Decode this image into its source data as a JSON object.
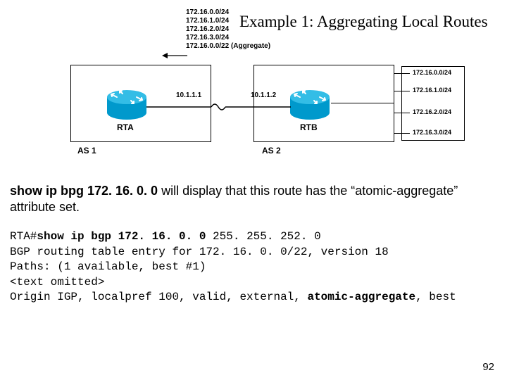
{
  "title": "Example 1: Aggregating Local Routes",
  "page_number": "92",
  "diagram": {
    "top_routes": [
      "172.16.0.0/24",
      "172.16.1.0/24",
      "172.16.2.0/24",
      "172.16.3.0/24"
    ],
    "aggregate": "172.16.0.0/22 (Aggregate)",
    "as1_label": "AS 1",
    "as2_label": "AS 2",
    "rta_label": "RTA",
    "rtb_label": "RTB",
    "link_ip_a": "10.1.1.1",
    "link_ip_b": "10.1.1.2",
    "right_routes": [
      "172.16.0.0/24",
      "172.16.1.0/24",
      "172.16.2.0/24",
      "172.16.3.0/24"
    ],
    "colors": {
      "router_body": "#0099cc",
      "router_top": "#33bde6",
      "router_arrow": "#ffffff",
      "box_border": "#000000",
      "link": "#000000",
      "bg": "#ffffff"
    },
    "right_stub_tops": [
      92,
      117,
      148,
      177
    ],
    "right_label_tops": [
      86,
      111,
      142,
      171
    ]
  },
  "description": {
    "cmd": "show ip bpg 172. 16. 0. 0",
    "rest": " will display that this route has the “atomic-aggregate” attribute set."
  },
  "cli": {
    "prompt": "RTA#",
    "cmd": "show ip bgp 172. 16. 0. 0",
    "mask": " 255. 255. 252. 0",
    "line2": "BGP routing table entry for 172. 16. 0. 0/22, version 18",
    "line3": "Paths: (1 available, best #1)",
    "line4": "<text omitted>",
    "line5a": " Origin IGP, localpref 100, valid, external, ",
    "line5b": "atomic-aggregate",
    "line5c": ", best"
  }
}
